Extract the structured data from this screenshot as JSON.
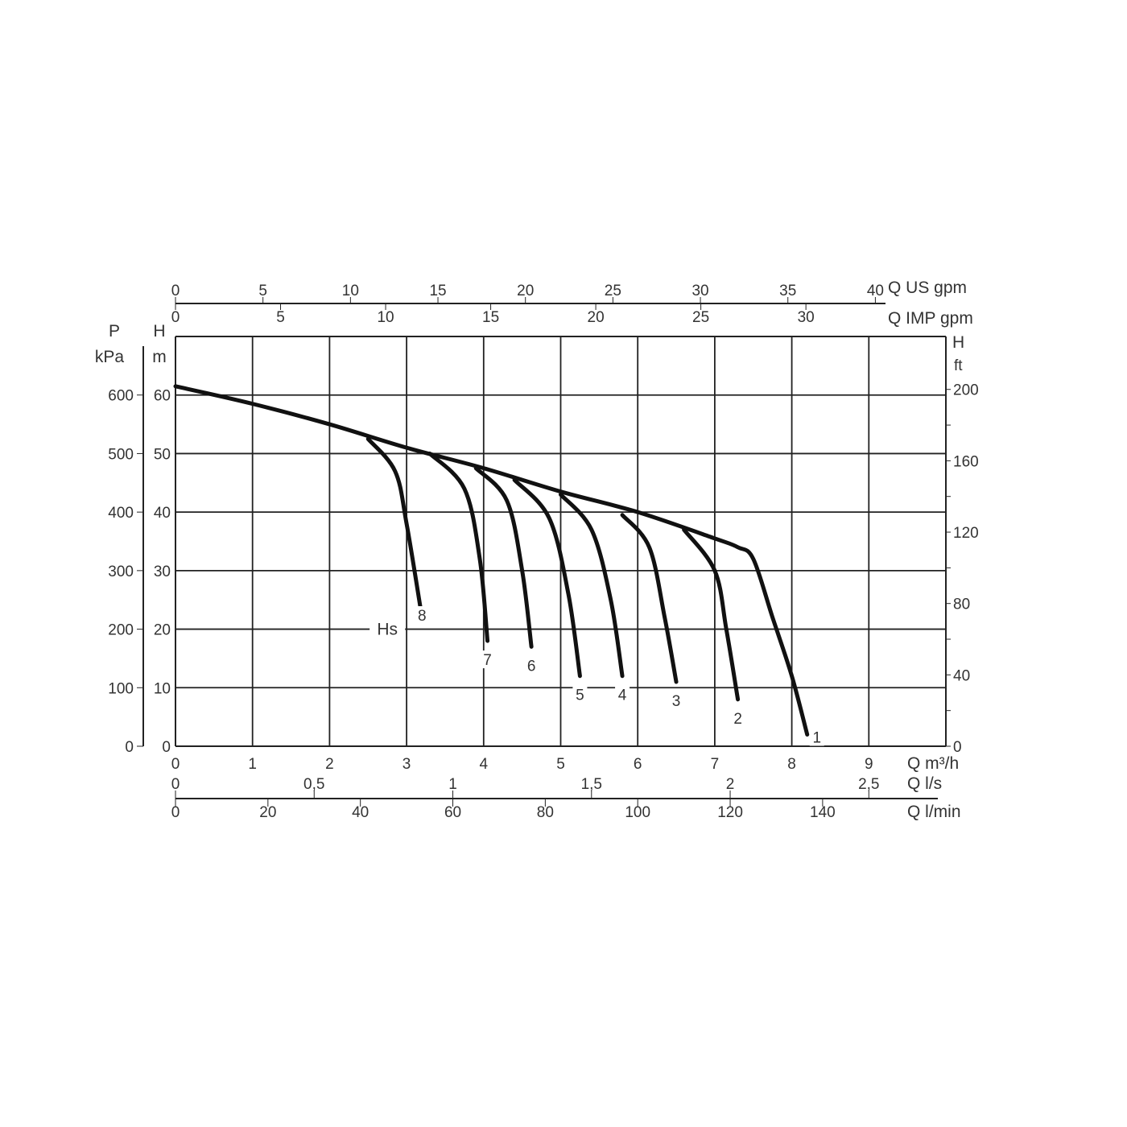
{
  "chart_data": {
    "type": "line",
    "title": "",
    "x_axes": {
      "primary": {
        "label": "Q m³/h",
        "range": [
          0,
          10
        ],
        "ticks": [
          0,
          1,
          2,
          3,
          4,
          5,
          6,
          7,
          8,
          9
        ]
      },
      "ls": {
        "label": "Q l/s",
        "ticks": [
          0,
          0.5,
          1,
          1.5,
          2,
          2.5
        ],
        "tick_labels": [
          "0",
          "0,5",
          "1",
          "1,5",
          "2",
          "2,5"
        ]
      },
      "lmin": {
        "label": "Q l/min",
        "ticks": [
          0,
          20,
          40,
          60,
          80,
          100,
          120,
          140
        ]
      },
      "us_gpm": {
        "label": "Q US gpm",
        "ticks": [
          0,
          5,
          10,
          15,
          20,
          25,
          30,
          35,
          40
        ]
      },
      "imp_gpm": {
        "label": "Q IMP gpm",
        "ticks": [
          0,
          5,
          10,
          15,
          20,
          25,
          30
        ]
      }
    },
    "y_axes": {
      "primary": {
        "label": "H",
        "unit": "m",
        "range": [
          0,
          70
        ],
        "ticks": [
          0,
          10,
          20,
          30,
          40,
          50,
          60
        ]
      },
      "pressure": {
        "label": "P",
        "unit": "kPa",
        "ticks": [
          0,
          100,
          200,
          300,
          400,
          500,
          600
        ]
      },
      "feet": {
        "label": "H",
        "unit": "ft",
        "ticks": [
          0,
          40,
          80,
          120,
          160,
          200
        ]
      }
    },
    "grid": true,
    "annotation": "Hs",
    "series": [
      {
        "name": "1",
        "points": [
          [
            0,
            61.5
          ],
          [
            1,
            58.5
          ],
          [
            2,
            55
          ],
          [
            3,
            51
          ],
          [
            4,
            47.5
          ],
          [
            5,
            43.5
          ],
          [
            6,
            40
          ],
          [
            7,
            35.5
          ],
          [
            7.3,
            34
          ],
          [
            7.5,
            32
          ],
          [
            7.75,
            22
          ],
          [
            8.0,
            12
          ],
          [
            8.2,
            2
          ]
        ]
      },
      {
        "name": "2",
        "points": [
          [
            6.6,
            37
          ],
          [
            7.0,
            30
          ],
          [
            7.15,
            20
          ],
          [
            7.3,
            8
          ]
        ]
      },
      {
        "name": "3",
        "points": [
          [
            5.8,
            39.5
          ],
          [
            6.15,
            34
          ],
          [
            6.35,
            22
          ],
          [
            6.5,
            11
          ]
        ]
      },
      {
        "name": "4",
        "points": [
          [
            5.0,
            43
          ],
          [
            5.4,
            37
          ],
          [
            5.65,
            25
          ],
          [
            5.8,
            12
          ]
        ]
      },
      {
        "name": "5",
        "points": [
          [
            4.4,
            45.5
          ],
          [
            4.85,
            39
          ],
          [
            5.1,
            26
          ],
          [
            5.25,
            12
          ]
        ]
      },
      {
        "name": "6",
        "points": [
          [
            3.9,
            47.5
          ],
          [
            4.3,
            42
          ],
          [
            4.5,
            30
          ],
          [
            4.62,
            17
          ]
        ]
      },
      {
        "name": "7",
        "points": [
          [
            3.3,
            50
          ],
          [
            3.75,
            44
          ],
          [
            3.95,
            32
          ],
          [
            4.05,
            18
          ]
        ]
      },
      {
        "name": "8",
        "points": [
          [
            2.5,
            52.5
          ],
          [
            2.85,
            47
          ],
          [
            3.0,
            38
          ],
          [
            3.2,
            22
          ]
        ]
      }
    ]
  },
  "colors": {
    "curve": "#111111",
    "grid": "#222222",
    "text": "#333333"
  }
}
